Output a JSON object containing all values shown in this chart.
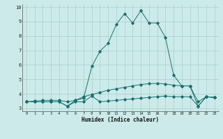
{
  "xlabel": "Humidex (Indice chaleur)",
  "xlim": [
    -0.5,
    23.5
  ],
  "ylim": [
    2.8,
    10.2
  ],
  "yticks": [
    3,
    4,
    5,
    6,
    7,
    8,
    9,
    10
  ],
  "xticks": [
    0,
    1,
    2,
    3,
    4,
    5,
    6,
    7,
    8,
    9,
    10,
    11,
    12,
    13,
    14,
    15,
    16,
    17,
    18,
    19,
    20,
    21,
    22,
    23
  ],
  "bg_color": "#cceaea",
  "grid_color": "#aacece",
  "line_color": "#1a6e6e",
  "line1_x": [
    0,
    1,
    2,
    3,
    4,
    5,
    6,
    7,
    8,
    9,
    10,
    11,
    12,
    13,
    14,
    15,
    16,
    17,
    18,
    19,
    20,
    21,
    22,
    23
  ],
  "line1_y": [
    3.45,
    3.45,
    3.45,
    3.45,
    3.45,
    3.15,
    3.45,
    3.45,
    3.85,
    3.45,
    3.5,
    3.55,
    3.6,
    3.65,
    3.7,
    3.75,
    3.8,
    3.85,
    3.8,
    3.8,
    3.8,
    3.15,
    3.8,
    3.75
  ],
  "line2_x": [
    0,
    1,
    2,
    3,
    4,
    5,
    6,
    7,
    8,
    9,
    10,
    11,
    12,
    13,
    14,
    15,
    16,
    17,
    18,
    19,
    20,
    21,
    22,
    23
  ],
  "line2_y": [
    3.45,
    3.5,
    3.55,
    3.55,
    3.55,
    3.45,
    3.55,
    3.8,
    3.95,
    4.1,
    4.25,
    4.35,
    4.45,
    4.55,
    4.65,
    4.7,
    4.72,
    4.68,
    4.6,
    4.55,
    4.55,
    3.45,
    3.8,
    3.75
  ],
  "line3_x": [
    0,
    1,
    2,
    3,
    4,
    5,
    6,
    7,
    8,
    9,
    10,
    11,
    12,
    13,
    14,
    15,
    16,
    17,
    18,
    19,
    20,
    21,
    22,
    23
  ],
  "line3_y": [
    3.45,
    3.45,
    3.45,
    3.45,
    3.45,
    3.15,
    3.55,
    3.7,
    5.9,
    6.95,
    7.5,
    8.8,
    9.55,
    8.9,
    9.75,
    8.9,
    8.9,
    7.9,
    5.3,
    4.55,
    4.55,
    3.15,
    3.8,
    3.75
  ]
}
